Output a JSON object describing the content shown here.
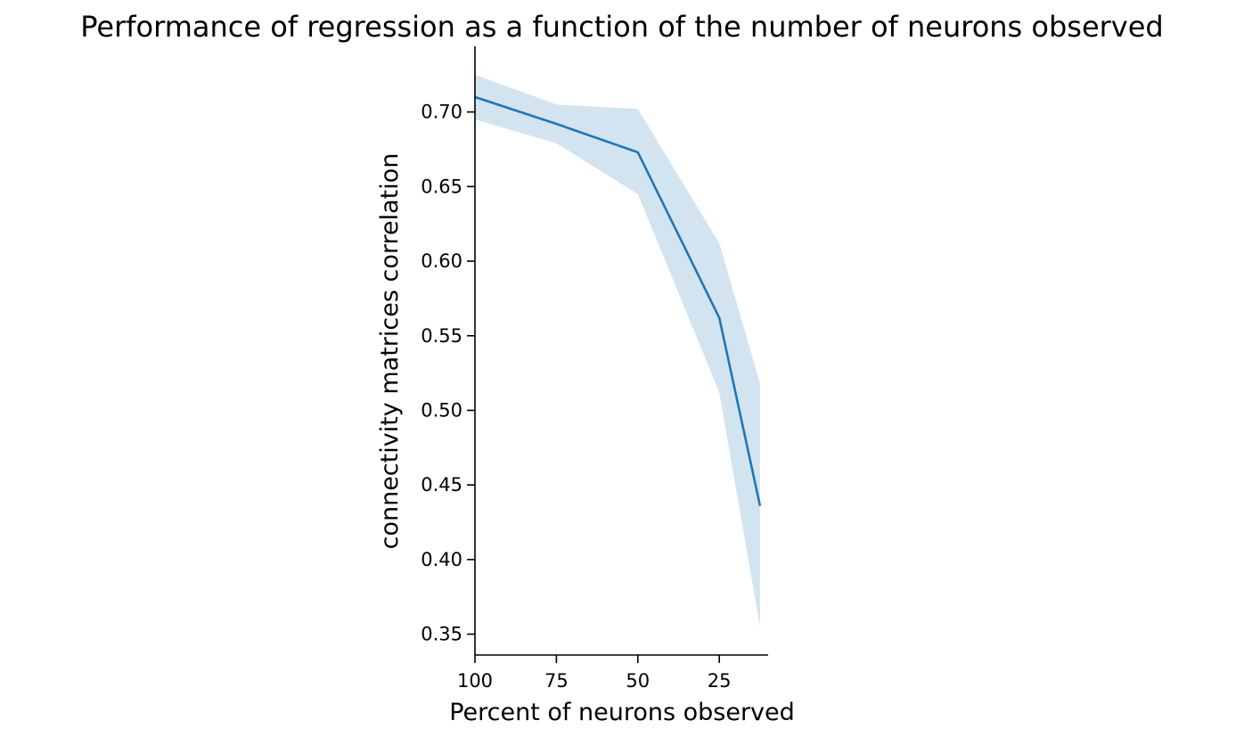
{
  "chart_data": {
    "type": "line",
    "title": "Performance of regression as a function of the number of neurons observed",
    "xlabel": "Percent of neurons observed",
    "ylabel": "connectivity matrices correlation",
    "x": [
      100,
      75,
      50,
      25,
      12.5
    ],
    "x_reversed": true,
    "xlim": [
      100,
      10
    ],
    "ylim": [
      0.336,
      0.744
    ],
    "x_ticks": [
      100,
      75,
      50,
      25
    ],
    "x_tick_labels": [
      "100",
      "75",
      "50",
      "25"
    ],
    "y_ticks": [
      0.35,
      0.4,
      0.45,
      0.5,
      0.55,
      0.6,
      0.65,
      0.7
    ],
    "y_tick_labels": [
      "0.35",
      "0.40",
      "0.45",
      "0.50",
      "0.55",
      "0.60",
      "0.65",
      "0.70"
    ],
    "grid": false,
    "series": [
      {
        "values": [
          0.71,
          0.692,
          0.673,
          0.562,
          0.436
        ],
        "lower": [
          0.695,
          0.679,
          0.645,
          0.512,
          0.355
        ],
        "upper": [
          0.725,
          0.705,
          0.702,
          0.612,
          0.518
        ]
      }
    ],
    "colors": {
      "line": "#1f77b4",
      "band": "#1f77b4",
      "band_opacity": 0.2,
      "axis": "#000000"
    }
  }
}
